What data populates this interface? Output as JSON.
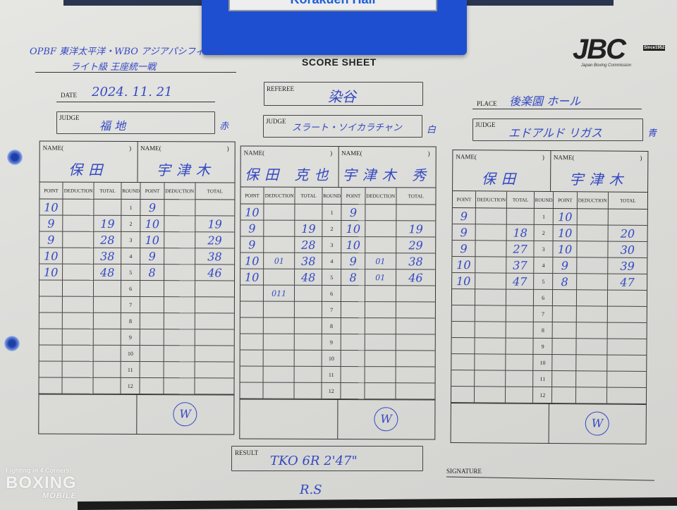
{
  "clipboard_label": "Korakuen Hall",
  "header": {
    "bout_line1": "OPBF 東洋太平洋・WBO アジアパシフィック",
    "bout_line2": "ライト級 王座統一戦",
    "sheet_title": "SCORE SHEET",
    "logo": "JBC",
    "logo_since": "Since1952",
    "logo_sub": "Japan Boxing Commission"
  },
  "fields": {
    "date_label": "DATE",
    "date": "2024. 11. 21",
    "referee_label": "REFEREE",
    "referee": "染谷",
    "place_label": "PLACE",
    "place": "後楽園 ホール"
  },
  "labels": {
    "name": "NAME(",
    "name_close": ")",
    "point": "POINT",
    "deduction": "DEDUCTION",
    "total": "TOTAL",
    "round": "ROUND",
    "judge": "JUDGE"
  },
  "cards": [
    {
      "judge": "福  地",
      "corner": "赤",
      "red_name": "保田",
      "blue_name": "宇津木",
      "winner_mark": "W",
      "rows": [
        {
          "round": "1",
          "rp": "10",
          "rd": "",
          "rt": "",
          "bp": "9",
          "bd": "",
          "bt": ""
        },
        {
          "round": "2",
          "rp": "9",
          "rd": "",
          "rt": "19",
          "bp": "10",
          "bd": "",
          "bt": "19"
        },
        {
          "round": "3",
          "rp": "9",
          "rd": "",
          "rt": "28",
          "bp": "10",
          "bd": "",
          "bt": "29"
        },
        {
          "round": "4",
          "rp": "10",
          "rd": "",
          "rt": "38",
          "bp": "9",
          "bd": "",
          "bt": "38"
        },
        {
          "round": "5",
          "rp": "10",
          "rd": "",
          "rt": "48",
          "bp": "8",
          "bd": "",
          "bt": "46"
        },
        {
          "round": "6"
        },
        {
          "round": "7"
        },
        {
          "round": "8"
        },
        {
          "round": "9"
        },
        {
          "round": "10"
        },
        {
          "round": "11"
        },
        {
          "round": "12"
        }
      ]
    },
    {
      "judge": "スラート・ソイカラチャン",
      "corner": "白",
      "red_name": "保田 克也",
      "blue_name": "宇津木 秀",
      "winner_mark": "W",
      "rows": [
        {
          "round": "1",
          "rp": "10",
          "rd": "",
          "rt": "",
          "bp": "9",
          "bd": "",
          "bt": ""
        },
        {
          "round": "2",
          "rp": "9",
          "rd": "",
          "rt": "19",
          "bp": "10",
          "bd": "",
          "bt": "19"
        },
        {
          "round": "3",
          "rp": "9",
          "rd": "",
          "rt": "28",
          "bp": "10",
          "bd": "",
          "bt": "29"
        },
        {
          "round": "4",
          "rp": "10",
          "rd": "01",
          "rt": "38",
          "bp": "9",
          "bd": "01",
          "bt": "38"
        },
        {
          "round": "5",
          "rp": "10",
          "rd": "",
          "rt": "48",
          "bp": "8",
          "bd": "01",
          "bt": "46"
        },
        {
          "round": "6",
          "rp": "",
          "rd": "011",
          "rt": "",
          "bp": "",
          "bd": "",
          "bt": ""
        },
        {
          "round": "7"
        },
        {
          "round": "8"
        },
        {
          "round": "9"
        },
        {
          "round": "10"
        },
        {
          "round": "11"
        },
        {
          "round": "12"
        }
      ]
    },
    {
      "judge": "エドアルド  リガス",
      "corner": "青",
      "red_name": "保田",
      "blue_name": "宇津木",
      "winner_mark": "W",
      "rows": [
        {
          "round": "1",
          "rp": "9",
          "rd": "",
          "rt": "",
          "bp": "10",
          "bd": "",
          "bt": ""
        },
        {
          "round": "2",
          "rp": "9",
          "rd": "",
          "rt": "18",
          "bp": "10",
          "bd": "",
          "bt": "20"
        },
        {
          "round": "3",
          "rp": "9",
          "rd": "",
          "rt": "27",
          "bp": "10",
          "bd": "",
          "bt": "30"
        },
        {
          "round": "4",
          "rp": "10",
          "rd": "",
          "rt": "37",
          "bp": "9",
          "bd": "",
          "bt": "39"
        },
        {
          "round": "5",
          "rp": "10",
          "rd": "",
          "rt": "47",
          "bp": "8",
          "bd": "",
          "bt": "47"
        },
        {
          "round": "6"
        },
        {
          "round": "7"
        },
        {
          "round": "8"
        },
        {
          "round": "9"
        },
        {
          "round": "10"
        },
        {
          "round": "11"
        },
        {
          "round": "12"
        }
      ]
    }
  ],
  "result": {
    "label": "RESULT",
    "value": "TKO 6R   2'47\"",
    "initials": "R.S",
    "signature_label": "SIGNATURE"
  },
  "watermark": {
    "slogan": "Fighting in 4 Corners!",
    "brand": "BOXING",
    "brand_sub": "MOBILE"
  },
  "colors": {
    "ink": "#3449c2",
    "clipboard": "#1d4fd0",
    "paper": "#dcdcd9"
  }
}
